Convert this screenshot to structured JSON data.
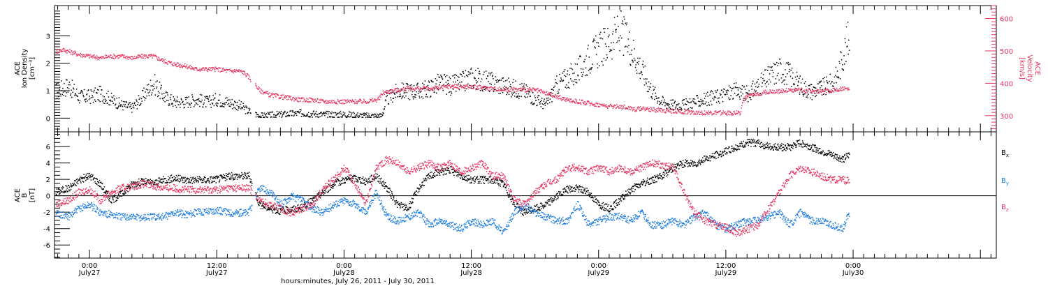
{
  "colors": {
    "black": "#000000",
    "pink": "#e8335f",
    "blue": "#1b7ce0"
  },
  "xaxis": {
    "range": [
      -3.3,
      85.5
    ],
    "ticks": [
      {
        "t": 0,
        "time": "0:00",
        "date": "July27"
      },
      {
        "t": 12,
        "time": "12:00",
        "date": "July27"
      },
      {
        "t": 24,
        "time": "0:00",
        "date": "July28"
      },
      {
        "t": 36,
        "time": "12:00",
        "date": "July28"
      },
      {
        "t": 48,
        "time": "0:00",
        "date": "July29"
      },
      {
        "t": 60,
        "time": "12:00",
        "date": "July29"
      },
      {
        "t": 72,
        "time": "0:00",
        "date": "July30"
      }
    ],
    "label": "hours:minutes, July 26, 2011 - July 30, 2011"
  },
  "chart_data": [
    {
      "type": "scatter",
      "panel": "top",
      "ylabel_left": [
        "ACE",
        "Ion Density",
        "[cm⁻³]"
      ],
      "ylabel_right": [
        "ACE",
        "Velocity",
        "[km/s]"
      ],
      "left_ticks": [
        "0",
        "1",
        "2",
        "3"
      ],
      "right_ticks": [
        "300",
        "400",
        "500",
        "600"
      ],
      "ylim_left": [
        -0.5,
        4.1
      ],
      "ylim_right": [
        250,
        640
      ],
      "data_gap_hours": [
        [
          15.2,
          15.6
        ]
      ],
      "series": [
        {
          "color": "black",
          "axis": "left",
          "x": [
            -3.2,
            -2,
            -1,
            0,
            1,
            2,
            3,
            4,
            5,
            6,
            7,
            8,
            9,
            10,
            11,
            12,
            13,
            14,
            14.8,
            16,
            18,
            20,
            22,
            24,
            26,
            27.5,
            28,
            29,
            30,
            31,
            32,
            33,
            34,
            35,
            36,
            37,
            38,
            39,
            40,
            41,
            42,
            43,
            44,
            45,
            46,
            47,
            48,
            49,
            50,
            51,
            52,
            53,
            54,
            55,
            56,
            57,
            58,
            59,
            60,
            61,
            62,
            63,
            64,
            65,
            66,
            67,
            68,
            69,
            70,
            70.5,
            71,
            71.6
          ],
          "y": [
            1.0,
            1.2,
            0.8,
            0.8,
            0.9,
            0.7,
            0.5,
            0.4,
            0.8,
            1.3,
            0.8,
            0.6,
            0.6,
            0.7,
            0.6,
            0.7,
            0.6,
            0.5,
            0.3,
            0.1,
            0.15,
            0.2,
            0.15,
            0.15,
            0.1,
            0.1,
            0.7,
            1.0,
            1.0,
            1.0,
            1.1,
            1.3,
            1.2,
            1.3,
            1.5,
            1.4,
            1.3,
            1.2,
            1.1,
            1.0,
            0.7,
            0.5,
            1.2,
            1.5,
            1.7,
            2.2,
            2.5,
            2.8,
            3.2,
            2.6,
            1.8,
            1.0,
            0.6,
            0.5,
            0.5,
            0.6,
            0.7,
            0.8,
            0.9,
            1.0,
            0.9,
            1.2,
            1.5,
            1.8,
            1.6,
            1.2,
            1.0,
            1.1,
            1.3,
            1.6,
            2.3,
            3.0
          ]
        },
        {
          "color": "pink",
          "axis": "right",
          "x": [
            -3.2,
            -2.5,
            -1,
            0,
            1,
            2,
            3,
            4,
            5,
            6,
            7,
            8,
            9,
            10,
            11,
            12,
            13,
            14,
            14.5,
            15,
            16,
            17,
            18,
            19,
            20,
            21,
            22,
            23,
            24,
            25,
            26,
            27,
            27.3,
            27.6,
            28,
            29,
            30,
            31,
            32,
            33,
            34,
            35,
            36,
            37,
            38,
            39,
            40,
            41,
            42,
            43,
            44,
            45,
            46,
            47,
            48,
            49,
            50,
            51,
            51.5,
            52,
            53,
            54,
            55,
            56,
            57,
            58,
            59,
            60,
            61,
            61.3,
            61.6,
            62,
            63,
            64,
            65,
            66,
            67,
            68,
            69,
            70,
            71,
            71.6
          ],
          "y": [
            500,
            505,
            490,
            485,
            480,
            485,
            485,
            480,
            485,
            485,
            470,
            460,
            455,
            445,
            445,
            445,
            440,
            440,
            435,
            420,
            380,
            365,
            360,
            355,
            350,
            350,
            345,
            345,
            345,
            345,
            345,
            350,
            355,
            372,
            375,
            380,
            385,
            385,
            385,
            388,
            392,
            392,
            390,
            388,
            385,
            382,
            382,
            382,
            380,
            370,
            360,
            350,
            345,
            340,
            335,
            330,
            330,
            325,
            320,
            325,
            320,
            318,
            315,
            313,
            312,
            310,
            310,
            310,
            310,
            310,
            350,
            360,
            370,
            375,
            378,
            380,
            380,
            378,
            375,
            380,
            385,
            382
          ]
        }
      ]
    },
    {
      "type": "scatter",
      "panel": "bottom",
      "ylabel_left": [
        "ACE",
        "B",
        "[nT]"
      ],
      "left_ticks": [
        "-6",
        "-4",
        "-2",
        "0",
        "2",
        "4",
        "6"
      ],
      "ylim": [
        -7.6,
        7.8
      ],
      "zero_line": true,
      "data_gap_hours": [
        [
          15.3,
          15.6
        ]
      ],
      "legend": [
        "Bx",
        "By",
        "Bz"
      ],
      "series": [
        {
          "name": "Bx",
          "color": "black",
          "x": [
            -3.2,
            -2,
            -1,
            0,
            1,
            2,
            3,
            4,
            5,
            6,
            7,
            8,
            9,
            10,
            11,
            12,
            13,
            14,
            15,
            16,
            17,
            18,
            19,
            20,
            21,
            22,
            23,
            24,
            25,
            26,
            27,
            28,
            29,
            30,
            31,
            32,
            33,
            34,
            35,
            36,
            37,
            38,
            39,
            40,
            41,
            42,
            43,
            44,
            45,
            46,
            47,
            48,
            49,
            50,
            51,
            52,
            53,
            54,
            55,
            56,
            57,
            58,
            59,
            60,
            61,
            62,
            63,
            64,
            65,
            66,
            67,
            68,
            69,
            70,
            71,
            71.6
          ],
          "y": [
            0.5,
            1.0,
            2.0,
            2.5,
            1.5,
            -0.5,
            0.3,
            1.5,
            1.8,
            1.6,
            2.0,
            2.2,
            2.0,
            2.0,
            2.0,
            2.1,
            2.4,
            2.5,
            2.5,
            -1.0,
            -1.5,
            -1.8,
            -1.6,
            -1.4,
            -0.5,
            0.5,
            1.5,
            2.0,
            2.2,
            1.8,
            2.5,
            1.0,
            -1.0,
            -1.5,
            1.0,
            2.5,
            3.0,
            3.2,
            2.5,
            2.0,
            2.0,
            2.0,
            1.5,
            -1.0,
            -2.0,
            -1.5,
            -1.0,
            0.0,
            0.8,
            1.0,
            0.5,
            -1.0,
            -1.5,
            -0.5,
            0.8,
            1.5,
            2.0,
            2.5,
            3.5,
            4.0,
            4.0,
            4.5,
            5.0,
            5.5,
            6.0,
            6.5,
            6.5,
            6.0,
            6.0,
            6.0,
            6.5,
            6.0,
            5.5,
            5.0,
            4.5,
            5.0
          ]
        },
        {
          "name": "By",
          "color": "blue",
          "x": [
            -3.2,
            -2,
            -1,
            0,
            1,
            2,
            3,
            4,
            5,
            6,
            7,
            8,
            9,
            10,
            11,
            12,
            13,
            14,
            15,
            16,
            17,
            18,
            19,
            20,
            21,
            22,
            23,
            24,
            25,
            26,
            27,
            28,
            29,
            30,
            31,
            32,
            33,
            34,
            35,
            36,
            37,
            38,
            39,
            40,
            41,
            42,
            43,
            44,
            45,
            46,
            47,
            48,
            49,
            50,
            51,
            52,
            53,
            54,
            55,
            56,
            57,
            58,
            59,
            60,
            61,
            62,
            63,
            64,
            65,
            66,
            67,
            68,
            69,
            70,
            71,
            71.6
          ],
          "y": [
            -2.0,
            -2.5,
            -1.5,
            -1.0,
            -2.0,
            -2.2,
            -2.5,
            -2.5,
            -2.6,
            -2.5,
            -2.5,
            -2.0,
            -2.2,
            -2.0,
            -1.8,
            -1.7,
            -2.0,
            -2.0,
            -2.0,
            1.0,
            0.5,
            -1.0,
            0.0,
            -0.5,
            -1.5,
            -2.0,
            -1.0,
            -0.5,
            -1.0,
            -2.0,
            0.5,
            -2.5,
            -3.0,
            -2.5,
            -2.0,
            -3.5,
            -3.0,
            -3.5,
            -4.0,
            -3.0,
            -3.5,
            -3.0,
            -4.5,
            -2.0,
            -1.0,
            -2.0,
            -2.5,
            -3.0,
            -3.0,
            -1.0,
            -3.5,
            -3.0,
            -2.5,
            -2.5,
            -3.0,
            -2.0,
            -3.5,
            -3.5,
            -3.0,
            -3.5,
            -2.5,
            -2.0,
            -3.5,
            -4.0,
            -3.5,
            -3.0,
            -3.0,
            -2.5,
            -2.0,
            -3.5,
            -2.0,
            -3.0,
            -3.0,
            -3.5,
            -4.0,
            -2.0
          ]
        },
        {
          "name": "Bz",
          "color": "pink",
          "x": [
            -3.2,
            -2,
            -1,
            0,
            1,
            2,
            3,
            4,
            5,
            6,
            7,
            8,
            9,
            10,
            11,
            12,
            13,
            14,
            15,
            16,
            17,
            18,
            19,
            20,
            21,
            22,
            23,
            24,
            25,
            26,
            27,
            28,
            29,
            30,
            31,
            32,
            33,
            34,
            35,
            36,
            37,
            38,
            39,
            40,
            41,
            42,
            43,
            44,
            45,
            46,
            47,
            48,
            49,
            50,
            51,
            52,
            53,
            54,
            55,
            56,
            57,
            58,
            59,
            60,
            61,
            62,
            63,
            64,
            65,
            66,
            67,
            68,
            69,
            70,
            71,
            71.6
          ],
          "y": [
            -1.0,
            -0.5,
            0.5,
            0.8,
            -0.5,
            0.5,
            1.0,
            1.2,
            1.5,
            1.3,
            1.0,
            1.0,
            0.8,
            0.8,
            0.8,
            0.8,
            1.0,
            1.0,
            1.0,
            -0.5,
            -1.0,
            -1.5,
            -2.0,
            -1.5,
            -1.0,
            1.0,
            2.0,
            3.5,
            1.5,
            -1.0,
            3.5,
            4.5,
            4.0,
            3.0,
            3.5,
            4.0,
            3.5,
            4.0,
            3.0,
            3.5,
            4.0,
            2.5,
            2.5,
            -0.5,
            -1.0,
            0.5,
            1.5,
            2.0,
            3.5,
            3.5,
            3.0,
            3.5,
            3.0,
            3.5,
            3.0,
            3.5,
            4.0,
            3.8,
            3.5,
            0.5,
            -2.0,
            -3.0,
            -3.5,
            -3.8,
            -4.5,
            -4.0,
            -3.5,
            -1.5,
            0.5,
            2.5,
            3.5,
            3.0,
            2.5,
            2.0,
            2.0,
            1.8
          ]
        }
      ]
    }
  ]
}
